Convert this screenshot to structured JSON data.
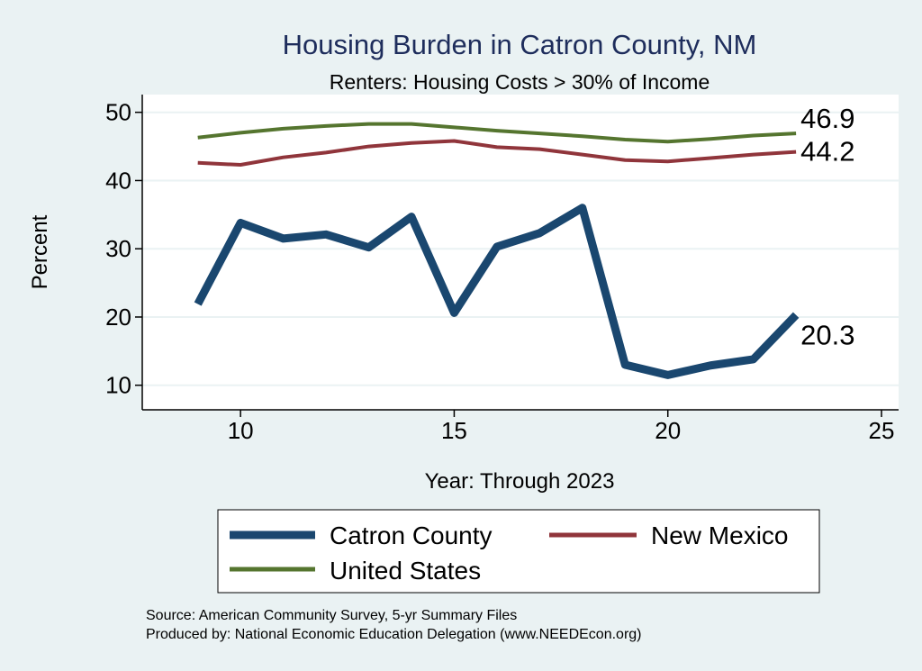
{
  "chart_data": {
    "type": "line",
    "title": "Housing Burden in Catron County, NM",
    "subtitle": "Renters: Housing Costs > 30% of Income",
    "xlabel": "Year: Through 2023",
    "ylabel": "Percent",
    "xlim": [
      7.7,
      25.4
    ],
    "ylim": [
      6.4,
      52.6
    ],
    "xticks": [
      10,
      15,
      20,
      25
    ],
    "yticks": [
      10,
      20,
      30,
      40,
      50
    ],
    "grid": true,
    "legend_position": "bottom",
    "x": [
      9,
      10,
      11,
      12,
      13,
      14,
      15,
      16,
      17,
      18,
      19,
      20,
      21,
      22,
      23
    ],
    "series": [
      {
        "name": "Catron County",
        "color": "#1a476f",
        "values": [
          21.9,
          33.8,
          31.5,
          32.1,
          30.2,
          34.7,
          20.6,
          30.3,
          32.3,
          36.0,
          13.0,
          11.5,
          12.9,
          13.8,
          20.3
        ],
        "end_label": "20.3"
      },
      {
        "name": "New Mexico",
        "color": "#90353b",
        "values": [
          42.6,
          42.3,
          43.4,
          44.1,
          45.0,
          45.5,
          45.8,
          44.9,
          44.6,
          43.8,
          43.0,
          42.8,
          43.3,
          43.8,
          44.2
        ],
        "end_label": "44.2"
      },
      {
        "name": "United States",
        "color": "#55752f",
        "values": [
          46.3,
          47.0,
          47.6,
          48.0,
          48.3,
          48.3,
          47.8,
          47.3,
          46.9,
          46.5,
          46.0,
          45.7,
          46.1,
          46.6,
          46.9
        ],
        "end_label": "46.9"
      }
    ],
    "notes": [
      "Source: American Community Survey, 5-yr Summary Files",
      "Produced by: National Economic Education Delegation (www.NEEDEcon.org)"
    ]
  }
}
